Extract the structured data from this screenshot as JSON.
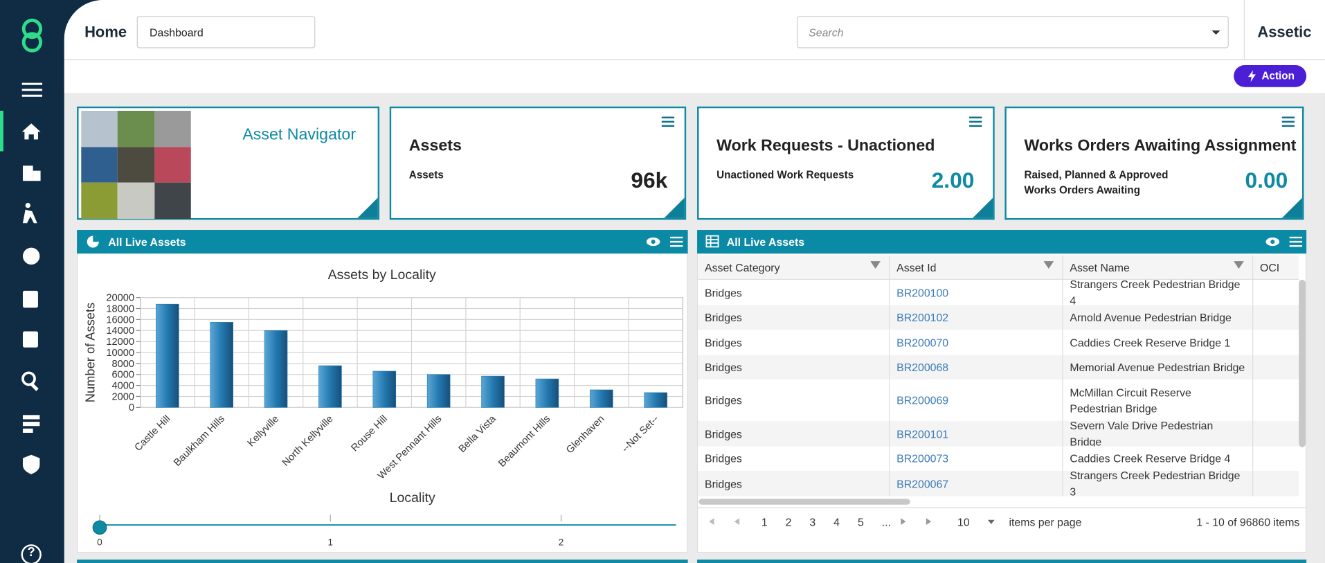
{
  "header": {
    "title": "Home",
    "dashboard": "Dashboard",
    "search_placeholder": "Search",
    "brand": "Assetic",
    "action": "Action"
  },
  "sidebar": {
    "help": "?"
  },
  "cards": [
    {
      "title": "Asset Navigator"
    },
    {
      "title": "Assets",
      "label": "Assets",
      "value": "96k"
    },
    {
      "title": "Work Requests - Unactioned",
      "label": "Unactioned Work Requests",
      "value": "2.00"
    },
    {
      "title": "Works Orders Awaiting Assignment",
      "label": "Raised, Planned & Approved Works Orders Awaiting",
      "value": "0.00"
    }
  ],
  "chart_panel": {
    "title": "All Live Assets"
  },
  "chart": {
    "type": "bar",
    "title": "Assets by Locality",
    "x_label": "Locality",
    "y_label": "Number of Assets",
    "categories": [
      "Castle Hill",
      "Baulkham Hills",
      "Kellyville",
      "North Kellyville",
      "Rouse Hill",
      "West Pennant Hills",
      "Bella Vista",
      "Beaumont Hills",
      "Glenhaven",
      "--Not Set--"
    ],
    "values": [
      18800,
      15500,
      14000,
      7600,
      6600,
      6000,
      5700,
      5200,
      3200,
      2700
    ],
    "color": "#2379b0",
    "ylim": [
      0,
      20000
    ],
    "yticks": [
      0,
      2000,
      4000,
      6000,
      8000,
      10000,
      12000,
      14000,
      16000,
      18000,
      20000
    ],
    "grid": true,
    "slider": {
      "ticks": [
        0,
        1,
        2
      ]
    }
  },
  "table": {
    "title": "All Live Assets",
    "columns": [
      "Asset Category",
      "Asset Id",
      "Asset Name",
      "OCI"
    ],
    "rows": [
      [
        "Bridges",
        "BR200100",
        "Strangers Creek Pedestrian Bridge 4"
      ],
      [
        "Bridges",
        "BR200102",
        "Arnold Avenue Pedestrian Bridge"
      ],
      [
        "Bridges",
        "BR200070",
        "Caddies Creek Reserve Bridge 1"
      ],
      [
        "Bridges",
        "BR200068",
        "Memorial Avenue Pedestrian Bridge"
      ],
      [
        "Bridges",
        "BR200069",
        "McMillan Circuit Reserve Pedestrian Bridge"
      ],
      [
        "Bridges",
        "BR200101",
        "Severn Vale Drive Pedestrian Bridge"
      ],
      [
        "Bridges",
        "BR200073",
        "Caddies Creek Reserve Bridge 4"
      ],
      [
        "Bridges",
        "BR200067",
        "Strangers Creek Pedestrian Bridge 3"
      ]
    ],
    "pages": [
      "1",
      "2",
      "3",
      "4",
      "5",
      "..."
    ],
    "page_size": "10",
    "page_size_label": "items per page",
    "summary": "1 - 10 of 96860 items"
  }
}
